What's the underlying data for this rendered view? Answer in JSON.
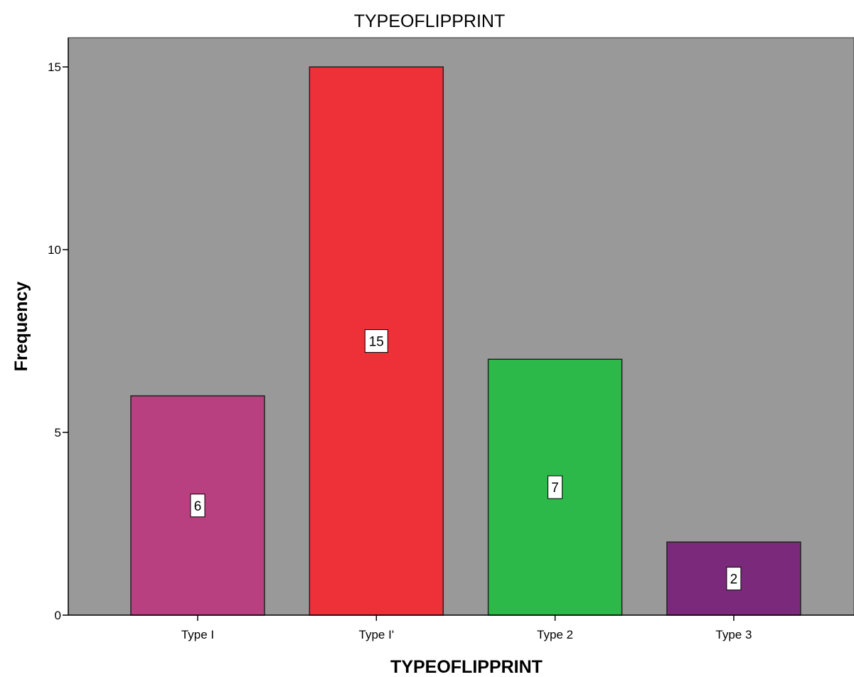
{
  "chart_data": {
    "type": "bar",
    "title": "TYPEOFLIPPRINT",
    "xlabel": "TYPEOFLIPPRINT",
    "ylabel": "Frequency",
    "categories": [
      "Type I",
      "Type I'",
      "Type 2",
      "Type 3"
    ],
    "values": [
      6,
      15,
      7,
      2
    ],
    "data_labels": [
      "6",
      "15",
      "7",
      "2"
    ],
    "colors": [
      "#B94080",
      "#EE3038",
      "#2DB84A",
      "#7B2A7B"
    ],
    "ylim": [
      0,
      15.8
    ],
    "yticks": [
      0,
      5,
      10,
      15
    ],
    "ytick_labels": [
      "0",
      "5",
      "10",
      "15"
    ],
    "grid": false,
    "legend": "none",
    "plot_background": "#999999"
  }
}
